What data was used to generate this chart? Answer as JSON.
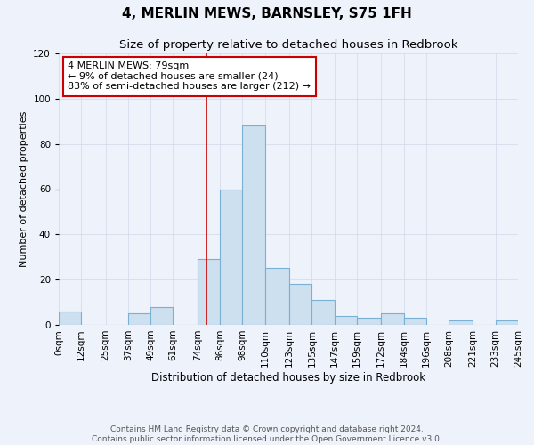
{
  "title": "4, MERLIN MEWS, BARNSLEY, S75 1FH",
  "subtitle": "Size of property relative to detached houses in Redbrook",
  "xlabel": "Distribution of detached houses by size in Redbrook",
  "ylabel": "Number of detached properties",
  "bin_edges": [
    0,
    12,
    25,
    37,
    49,
    61,
    74,
    86,
    98,
    110,
    123,
    135,
    147,
    159,
    172,
    184,
    196,
    208,
    221,
    233,
    245
  ],
  "bin_labels": [
    "0sqm",
    "12sqm",
    "25sqm",
    "37sqm",
    "49sqm",
    "61sqm",
    "74sqm",
    "86sqm",
    "98sqm",
    "110sqm",
    "123sqm",
    "135sqm",
    "147sqm",
    "159sqm",
    "172sqm",
    "184sqm",
    "196sqm",
    "208sqm",
    "221sqm",
    "233sqm",
    "245sqm"
  ],
  "counts": [
    6,
    0,
    0,
    5,
    8,
    0,
    29,
    60,
    88,
    25,
    18,
    11,
    4,
    3,
    5,
    3,
    0,
    2,
    0,
    2
  ],
  "bar_facecolor": "#cce0f0",
  "bar_edgecolor": "#7ab0d4",
  "property_line_x": 79,
  "property_line_color": "#cc0000",
  "annotation_text": "4 MERLIN MEWS: 79sqm\n← 9% of detached houses are smaller (24)\n83% of semi-detached houses are larger (212) →",
  "annotation_box_edgecolor": "#cc0000",
  "annotation_box_facecolor": "#ffffff",
  "ylim": [
    0,
    120
  ],
  "yticks": [
    0,
    20,
    40,
    60,
    80,
    100,
    120
  ],
  "grid_color": "#d0d8e8",
  "background_color": "#eef2fa",
  "footer_text": "Contains HM Land Registry data © Crown copyright and database right 2024.\nContains public sector information licensed under the Open Government Licence v3.0.",
  "title_fontsize": 11,
  "subtitle_fontsize": 9.5,
  "xlabel_fontsize": 8.5,
  "ylabel_fontsize": 8,
  "tick_fontsize": 7.5,
  "annotation_fontsize": 8,
  "footer_fontsize": 6.5
}
